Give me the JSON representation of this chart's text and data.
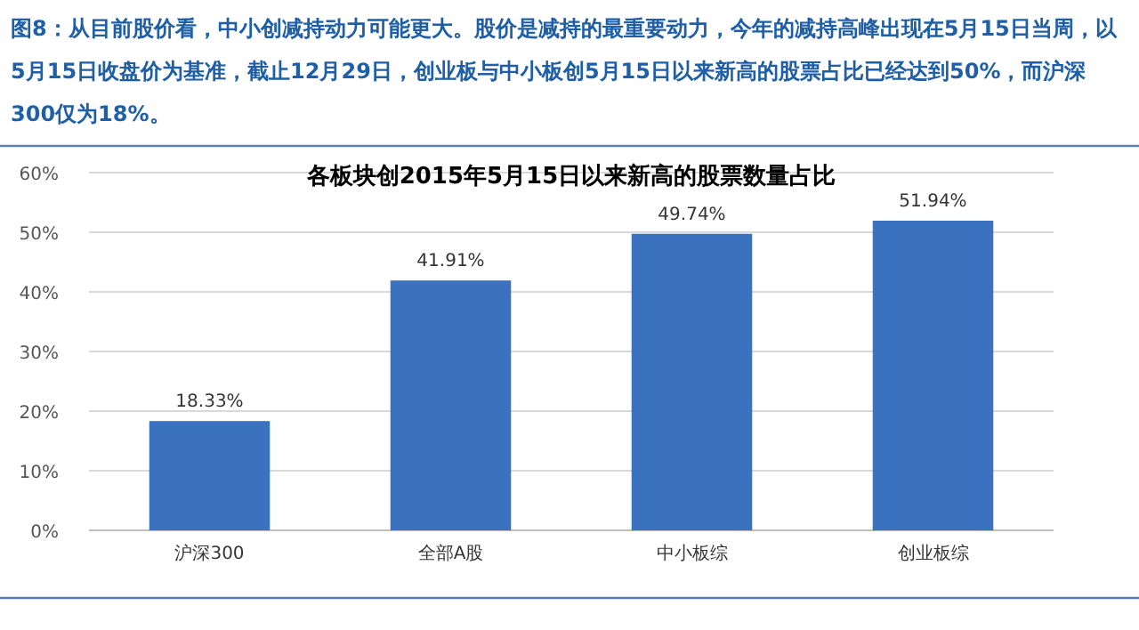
{
  "chart_data": {
    "type": "bar",
    "title": "各板块创2015年5月15日以来新高的股票数量占比",
    "annotations": [
      "图8：从目前股价看，中小创减持动力可能更大。股价是减持的最重要动力，今年的减持高峰出现在5月15日当周，以5月15日收盘价为基准，截止12月29日，创业板与中小板创5月15日以来新高的股票占比已经达到50%，而沪深300仅为18%。"
    ],
    "categories": [
      "沪深300",
      "全部A股",
      "中小板综",
      "创业板综"
    ],
    "values": [
      18.33,
      41.91,
      49.74,
      51.94
    ],
    "value_labels": [
      "18.33%",
      "41.91%",
      "49.74%",
      "51.94%"
    ],
    "color": "#3b72bf",
    "ylim": [
      0,
      60
    ],
    "yticks": [
      {
        "value": 0,
        "label": "0%"
      },
      {
        "value": 10,
        "label": "10%"
      },
      {
        "value": 20,
        "label": "20%"
      },
      {
        "value": 30,
        "label": "30%"
      },
      {
        "value": 40,
        "label": "40%"
      },
      {
        "value": 50,
        "label": "50%"
      },
      {
        "value": 60,
        "label": "60%"
      }
    ],
    "grid": "y"
  }
}
